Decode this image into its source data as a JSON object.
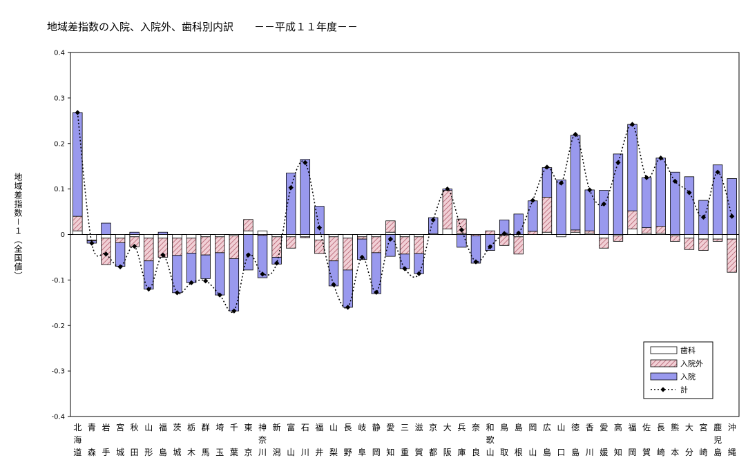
{
  "chart_data": {
    "type": "bar",
    "title": "地域差指数の入院、入院外、歯科別内訳　　－－平成１１年度－－",
    "ylabel": "地域差指数－１（全国値）",
    "ylim": [
      -0.4,
      0.4
    ],
    "yticks": [
      "0.4",
      "0.3",
      "0.2",
      "0.1",
      "0",
      "-0.1",
      "-0.2",
      "-0.3",
      "-0.4"
    ],
    "categories": [
      "北海道",
      "青森",
      "岩手",
      "宮城",
      "秋田",
      "山形",
      "福島",
      "茨城",
      "栃木",
      "群馬",
      "埼玉",
      "千葉",
      "東京",
      "神奈川",
      "新潟",
      "富山",
      "石川",
      "福井",
      "山梨",
      "長野",
      "岐阜",
      "静岡",
      "愛知",
      "三重",
      "滋賀",
      "京都",
      "大阪",
      "兵庫",
      "奈良",
      "和歌山",
      "鳥取",
      "島根",
      "岡山",
      "広島",
      "山口",
      "徳島",
      "香川",
      "愛媛",
      "高知",
      "福岡",
      "佐賀",
      "長崎",
      "熊本",
      "大分",
      "宮崎",
      "鹿児島",
      "沖縄"
    ],
    "series": [
      {
        "name": "入院",
        "color": "#9999ee",
        "values": [
          0.228,
          -0.005,
          0.025,
          -0.052,
          0.005,
          -0.062,
          0.005,
          -0.082,
          -0.065,
          -0.052,
          -0.093,
          -0.115,
          -0.078,
          -0.093,
          -0.015,
          0.135,
          0.165,
          0.062,
          -0.055,
          -0.082,
          -0.045,
          -0.09,
          -0.048,
          -0.032,
          -0.044,
          0.035,
          0.003,
          -0.028,
          -0.06,
          -0.035,
          0.032,
          0.045,
          0.067,
          0.065,
          0.12,
          0.208,
          0.09,
          0.097,
          0.177,
          0.19,
          0.11,
          0.15,
          0.137,
          0.127,
          0.075,
          0.153,
          0.123
        ]
      },
      {
        "name": "入院外",
        "color": "#e6b0b8",
        "values": [
          0.032,
          -0.002,
          -0.058,
          -0.01,
          -0.022,
          -0.05,
          -0.042,
          -0.038,
          -0.033,
          -0.04,
          -0.035,
          -0.05,
          0.025,
          -0.002,
          -0.045,
          -0.025,
          -0.002,
          -0.03,
          -0.053,
          -0.07,
          -0.005,
          -0.035,
          0.025,
          -0.038,
          -0.037,
          0.0,
          0.085,
          0.032,
          -0.003,
          0.008,
          -0.022,
          -0.038,
          0.007,
          0.077,
          0.0,
          0.005,
          0.005,
          -0.022,
          -0.012,
          0.04,
          0.012,
          0.015,
          -0.012,
          -0.025,
          -0.025,
          -0.005,
          -0.073
        ]
      },
      {
        "name": "歯科",
        "color": "#ffffff",
        "values": [
          0.008,
          -0.012,
          -0.008,
          -0.008,
          -0.005,
          -0.008,
          -0.008,
          -0.008,
          -0.008,
          -0.005,
          -0.005,
          -0.003,
          0.008,
          0.008,
          -0.005,
          -0.005,
          -0.005,
          -0.012,
          -0.005,
          -0.008,
          -0.005,
          -0.005,
          0.005,
          -0.005,
          -0.005,
          0.002,
          0.012,
          0.002,
          0.0,
          0.0,
          -0.002,
          -0.005,
          0.0,
          0.005,
          -0.005,
          0.005,
          0.003,
          -0.008,
          -0.003,
          0.012,
          0.003,
          0.003,
          -0.003,
          -0.008,
          -0.01,
          -0.01,
          -0.01
        ]
      },
      {
        "name": "計",
        "color": "#000000",
        "values": [
          0.268,
          -0.019,
          -0.043,
          -0.071,
          -0.026,
          -0.12,
          -0.045,
          -0.128,
          -0.106,
          -0.102,
          -0.133,
          -0.168,
          -0.045,
          -0.087,
          -0.063,
          0.103,
          0.158,
          0.015,
          -0.11,
          -0.16,
          -0.05,
          -0.127,
          -0.01,
          -0.075,
          -0.086,
          0.032,
          0.1,
          0.01,
          -0.06,
          -0.027,
          0.002,
          0.003,
          0.075,
          0.148,
          0.113,
          0.22,
          0.098,
          0.067,
          0.158,
          0.242,
          0.125,
          0.168,
          0.117,
          0.092,
          0.038,
          0.137,
          0.04
        ]
      }
    ],
    "legend": {
      "position": "bottom-right",
      "items": [
        "歯科",
        "入院外",
        "入院",
        "計"
      ]
    }
  }
}
